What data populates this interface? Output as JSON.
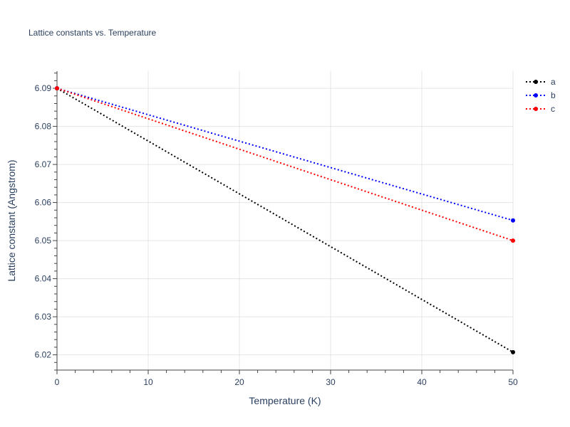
{
  "chart_data": {
    "type": "line",
    "title": "Lattice constants vs. Temperature",
    "xlabel": "Temperature (K)",
    "ylabel": "Lattice constant (Angstrom)",
    "xlim": [
      0,
      50
    ],
    "ylim": [
      6.016,
      6.0945
    ],
    "x_ticks": [
      0,
      10,
      20,
      30,
      40,
      50
    ],
    "y_ticks": [
      6.02,
      6.03,
      6.04,
      6.05,
      6.06,
      6.07,
      6.08,
      6.09
    ],
    "x_tick_labels": [
      "0",
      "10",
      "20",
      "30",
      "40",
      "50"
    ],
    "y_tick_labels": [
      "6.02",
      "6.03",
      "6.04",
      "6.05",
      "6.06",
      "6.07",
      "6.08",
      "6.09"
    ],
    "grid": true,
    "legend_position": "top-right",
    "line_style": "dotted",
    "series": [
      {
        "name": "a",
        "color": "#000000",
        "x": [
          0,
          50
        ],
        "y": [
          6.09,
          6.0207
        ]
      },
      {
        "name": "b",
        "color": "#0000ff",
        "x": [
          0,
          50
        ],
        "y": [
          6.09,
          6.0553
        ]
      },
      {
        "name": "c",
        "color": "#ff0000",
        "x": [
          0,
          50
        ],
        "y": [
          6.09,
          6.05
        ]
      }
    ]
  }
}
